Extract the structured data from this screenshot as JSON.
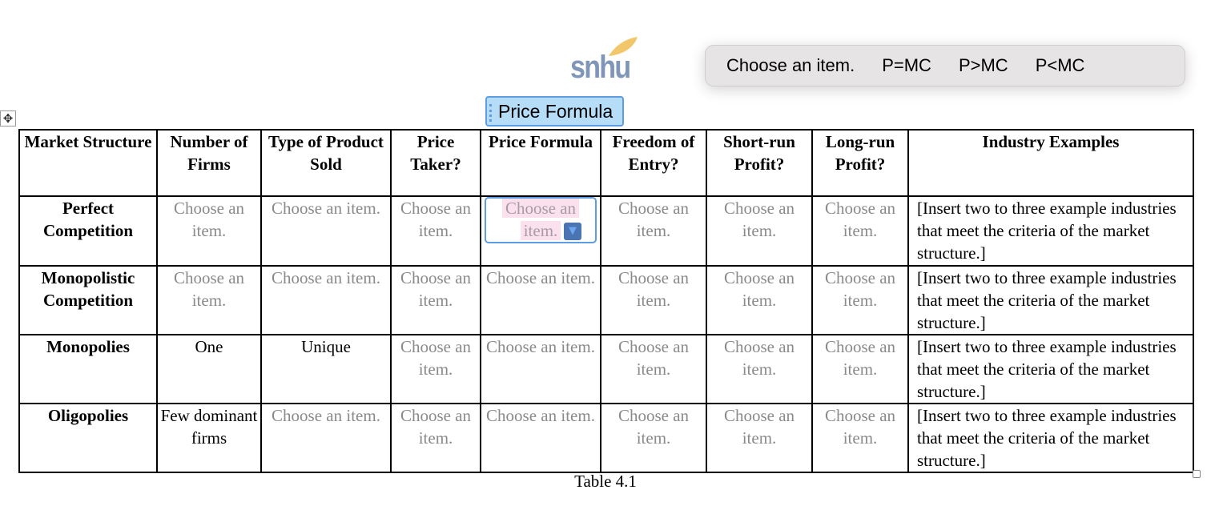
{
  "logo": {
    "text": "snhu",
    "leaf_color": "#f2c76b",
    "text_color": "#7f96b8"
  },
  "table": {
    "placeholder_text": "Choose an item.",
    "headers": [
      "Market Structure",
      "Number of Firms",
      "Type of Product Sold",
      "Price Taker?",
      "Price Formula",
      "Freedom of Entry?",
      "Short-run Profit?",
      "Long-run Profit?",
      "Industry Examples"
    ],
    "rows": [
      {
        "label": "Perfect Competition",
        "cells": [
          "Choose an item.",
          "Choose an item.",
          "Choose an item.",
          "",
          "Choose an item.",
          "Choose an item.",
          "Choose an item.",
          "[Insert two to three example industries that meet the criteria of the market structure.]"
        ]
      },
      {
        "label": "Monopolistic Competition",
        "cells": [
          "Choose an item.",
          "Choose an item.",
          "Choose an item.",
          "Choose an item.",
          "Choose an item.",
          "Choose an item.",
          "Choose an item.",
          "[Insert two to three example industries that meet the criteria of the market structure.]"
        ]
      },
      {
        "label": "Monopolies",
        "cells": [
          "One",
          "Unique",
          "Choose an item.",
          "Choose an item.",
          "Choose an item.",
          "Choose an item.",
          "Choose an item.",
          "[Insert two to three example industries that meet the criteria of the market structure.]"
        ]
      },
      {
        "label": "Oligopolies",
        "cells": [
          "Few dominant firms",
          "Choose an item.",
          "Choose an item.",
          "Choose an item.",
          "Choose an item.",
          "Choose an item.",
          "Choose an item.",
          "[Insert two to three example industries that meet the criteria of the market structure.]"
        ]
      }
    ],
    "caption": "Table 4.1"
  },
  "content_control": {
    "title": "Price Formula",
    "value": "Choose an item.",
    "value_line1": "Choose an",
    "value_line2": "item.",
    "arrow_icon": "dropdown-arrow"
  },
  "dropdown": {
    "options": [
      "Choose an item.",
      "P=MC",
      "P>MC",
      "P<MC"
    ]
  }
}
